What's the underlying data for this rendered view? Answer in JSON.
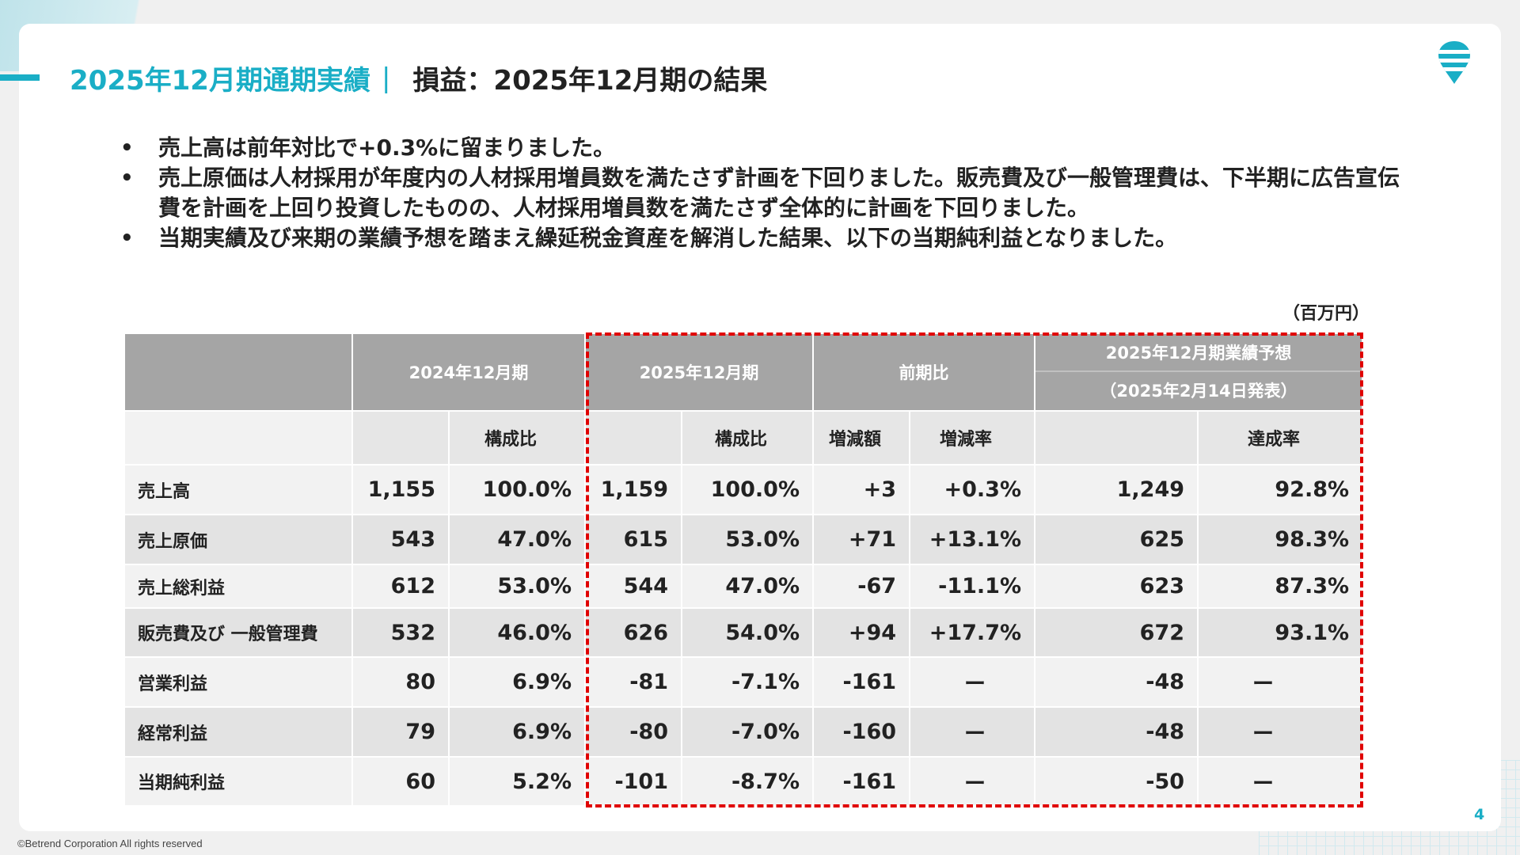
{
  "header": {
    "section": "2025年12月期通期実績",
    "separator": "|",
    "title": "損益：2025年12月期の結果"
  },
  "bullets": [
    "売上高は前年対比で+0.3%に留まりました。",
    "売上原価は人材採用が年度内の人材採用増員数を満たさず計画を下回りました。販売費及び一般管理費は、下半期に広告宣伝費を計画を上回り投資したものの、人材採用増員数を満たさず全体的に計画を下回りました。",
    "当期実績及び来期の業績予想を踏まえ繰延税金資産を解消した結果、以下の当期純利益となりました。"
  ],
  "unit": "（百万円）",
  "table": {
    "group_headers": {
      "fy2024": "2024年12月期",
      "fy2025": "2025年12月期",
      "yoy": "前期比",
      "forecast": "2025年12月期業績予想",
      "forecast_date": "（2025年2月14日発表）"
    },
    "sub_headers": {
      "ratio_2024": "構成比",
      "ratio_2025": "構成比",
      "change_amount": "増減額",
      "change_rate": "増減率",
      "achievement_rate": "達成率"
    },
    "rows": [
      {
        "label": "売上高",
        "v2024": "1,155",
        "r2024": "100.0%",
        "v2025": "1,159",
        "r2025": "100.0%",
        "diff": "+3",
        "rate": "+0.3%",
        "forecast": "1,249",
        "achieve": "92.8%"
      },
      {
        "label": "売上原価",
        "v2024": "543",
        "r2024": "47.0%",
        "v2025": "615",
        "r2025": "53.0%",
        "diff": "+71",
        "rate": "+13.1%",
        "forecast": "625",
        "achieve": "98.3%"
      },
      {
        "label": "売上総利益",
        "v2024": "612",
        "r2024": "53.0%",
        "v2025": "544",
        "r2025": "47.0%",
        "diff": "-67",
        "rate": "-11.1%",
        "forecast": "623",
        "achieve": "87.3%"
      },
      {
        "label": "販売費及び 一般管理費",
        "v2024": "532",
        "r2024": "46.0%",
        "v2025": "626",
        "r2025": "54.0%",
        "diff": "+94",
        "rate": "+17.7%",
        "forecast": "672",
        "achieve": "93.1%"
      },
      {
        "label": "営業利益",
        "v2024": "80",
        "r2024": "6.9%",
        "v2025": "-81",
        "r2025": "-7.1%",
        "diff": "-161",
        "rate": "ー",
        "forecast": "-48",
        "achieve": "ー"
      },
      {
        "label": "経常利益",
        "v2024": "79",
        "r2024": "6.9%",
        "v2025": "-80",
        "r2025": "-7.0%",
        "diff": "-160",
        "rate": "ー",
        "forecast": "-48",
        "achieve": "ー"
      },
      {
        "label": "当期純利益",
        "v2024": "60",
        "r2024": "5.2%",
        "v2025": "-101",
        "r2025": "-8.7%",
        "diff": "-161",
        "rate": "ー",
        "forecast": "-50",
        "achieve": "ー"
      }
    ]
  },
  "footer": {
    "page_number": "4",
    "copyright": "©Betrend Corporation All rights reserved"
  },
  "colors": {
    "accent": "#1aaec6",
    "highlight_border": "#e00000",
    "header_gray": "#a5a5a5"
  },
  "icons": {
    "logo": "betrend-logo-icon"
  }
}
